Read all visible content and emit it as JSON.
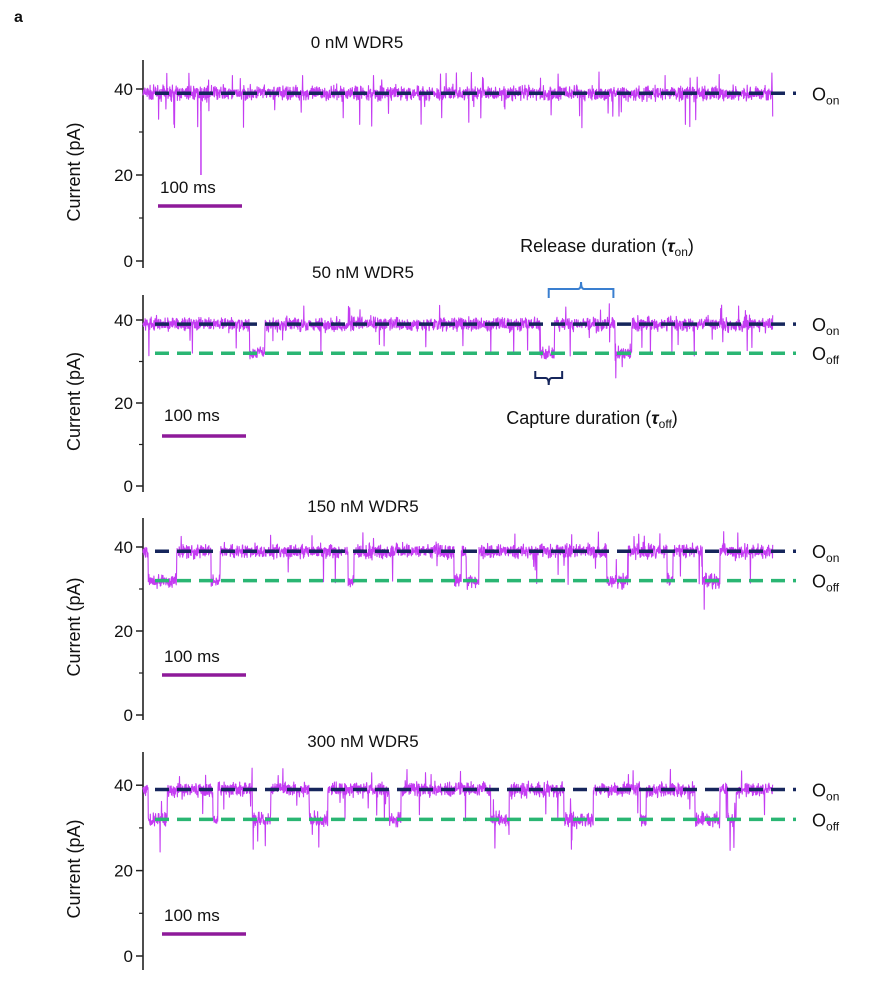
{
  "figure": {
    "panel_letter": "a"
  },
  "chart_data": [
    {
      "type": "line",
      "title": "0 nM WDR5",
      "ylabel": "Current (pA)",
      "ylim": [
        0,
        46
      ],
      "yticks": [
        0,
        20,
        40
      ],
      "yminor_ticks": [
        10,
        30
      ],
      "duration_ms": 750,
      "scale_bar": {
        "value_ms": 100,
        "label": "100 ms"
      },
      "levels": [
        {
          "name": "O",
          "sub": "on",
          "value_pA": 39,
          "color": "#16265c"
        }
      ],
      "capture_events_ms": [],
      "spikes": [
        {
          "t_ms": 69,
          "value_pA": 20
        }
      ],
      "trace_color": "#c43cf2"
    },
    {
      "type": "line",
      "title": "50 nM WDR5",
      "ylabel": "Current (pA)",
      "ylim": [
        0,
        46
      ],
      "yticks": [
        0,
        20,
        40
      ],
      "yminor_ticks": [
        10,
        30
      ],
      "duration_ms": 750,
      "scale_bar": {
        "value_ms": 100,
        "label": "100 ms"
      },
      "levels": [
        {
          "name": "O",
          "sub": "on",
          "value_pA": 39,
          "color": "#16265c"
        },
        {
          "name": "O",
          "sub": "off",
          "value_pA": 32,
          "color": "#2ab673"
        }
      ],
      "capture_events_ms": [
        [
          127,
          145
        ],
        [
          473,
          490
        ],
        [
          562,
          582
        ]
      ],
      "annotations": {
        "release": {
          "text": "Release duration (",
          "symbol": "τ",
          "sub": "on",
          "close": ")",
          "span_ms": [
            483,
            560
          ],
          "color": "#3a7fd0"
        },
        "capture": {
          "text": "Capture duration (",
          "symbol": "τ",
          "sub": "off",
          "close": ")",
          "span_ms": [
            467,
            499
          ],
          "color": "#16265c"
        }
      },
      "trace_color": "#c43cf2"
    },
    {
      "type": "line",
      "title": "150 nM WDR5",
      "ylabel": "Current (pA)",
      "ylim": [
        0,
        46
      ],
      "yticks": [
        0,
        20,
        40
      ],
      "yminor_ticks": [
        10,
        30
      ],
      "duration_ms": 750,
      "scale_bar": {
        "value_ms": 100,
        "label": "100 ms"
      },
      "levels": [
        {
          "name": "O",
          "sub": "on",
          "value_pA": 39,
          "color": "#16265c"
        },
        {
          "name": "O",
          "sub": "off",
          "value_pA": 32,
          "color": "#2ab673"
        }
      ],
      "capture_events_ms": [
        [
          6,
          40
        ],
        [
          81,
          92
        ],
        [
          244,
          251
        ],
        [
          370,
          379
        ],
        [
          385,
          400
        ],
        [
          552,
          577
        ],
        [
          624,
          631
        ],
        [
          666,
          687
        ]
      ],
      "trace_color": "#c43cf2"
    },
    {
      "type": "line",
      "title": "300 nM WDR5",
      "ylabel": "Current (pA)",
      "ylim": [
        0,
        46
      ],
      "yticks": [
        0,
        20,
        40
      ],
      "yminor_ticks": [
        10,
        30
      ],
      "duration_ms": 750,
      "scale_bar": {
        "value_ms": 100,
        "label": "100 ms"
      },
      "levels": [
        {
          "name": "O",
          "sub": "on",
          "value_pA": 39,
          "color": "#16265c"
        },
        {
          "name": "O",
          "sub": "off",
          "value_pA": 32,
          "color": "#2ab673"
        }
      ],
      "capture_events_ms": [
        [
          6,
          29
        ],
        [
          83,
          89
        ],
        [
          130,
          152
        ],
        [
          198,
          220
        ],
        [
          293,
          307
        ],
        [
          414,
          436
        ],
        [
          501,
          536
        ],
        [
          592,
          599
        ],
        [
          657,
          687
        ],
        [
          696,
          706
        ]
      ],
      "trace_color": "#c43cf2"
    }
  ]
}
